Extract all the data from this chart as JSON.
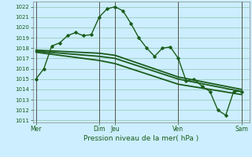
{
  "background_color": "#cceeff",
  "grid_color": "#99ccbb",
  "line_color": "#1a5c1a",
  "xlabel": "Pression niveau de la mer( hPa )",
  "ylim": [
    1011,
    1022.5
  ],
  "yticks": [
    1011,
    1012,
    1013,
    1014,
    1015,
    1016,
    1017,
    1018,
    1019,
    1020,
    1021,
    1022
  ],
  "xtick_labels": [
    "Mer",
    "Dim",
    "Jeu",
    "Ven",
    "Sam"
  ],
  "xtick_positions": [
    0,
    4,
    5,
    9,
    13
  ],
  "vlines": [
    0,
    4,
    5,
    9,
    13
  ],
  "xlim": [
    -0.2,
    13.5
  ],
  "series_main": {
    "x": [
      0,
      0.5,
      1.0,
      1.5,
      2.0,
      2.5,
      3.0,
      3.5,
      4.0,
      4.5,
      5.0,
      5.5,
      6.0,
      6.5,
      7.0,
      7.5,
      8.0,
      8.5,
      9.0,
      9.5,
      10.0,
      10.5,
      11.0,
      11.5,
      12.0,
      12.5,
      13.0
    ],
    "y": [
      1015.0,
      1016.0,
      1018.2,
      1018.5,
      1019.2,
      1019.5,
      1019.2,
      1019.3,
      1021.0,
      1021.8,
      1022.0,
      1021.6,
      1020.4,
      1019.0,
      1018.0,
      1017.2,
      1018.0,
      1018.1,
      1017.0,
      1014.8,
      1015.0,
      1014.3,
      1013.8,
      1012.0,
      1011.5,
      1013.8,
      1013.8
    ]
  },
  "series_trend": [
    {
      "x": [
        0,
        4,
        5,
        9,
        13
      ],
      "y": [
        1017.8,
        1017.5,
        1017.3,
        1015.2,
        1014.0
      ]
    },
    {
      "x": [
        0,
        4,
        5,
        9,
        13
      ],
      "y": [
        1017.7,
        1017.2,
        1017.0,
        1015.0,
        1013.8
      ]
    },
    {
      "x": [
        0,
        4,
        5,
        9,
        13
      ],
      "y": [
        1017.6,
        1016.8,
        1016.5,
        1014.5,
        1013.5
      ]
    }
  ],
  "ytick_fontsize": 5.0,
  "xtick_fontsize": 5.5,
  "xlabel_fontsize": 6.5
}
